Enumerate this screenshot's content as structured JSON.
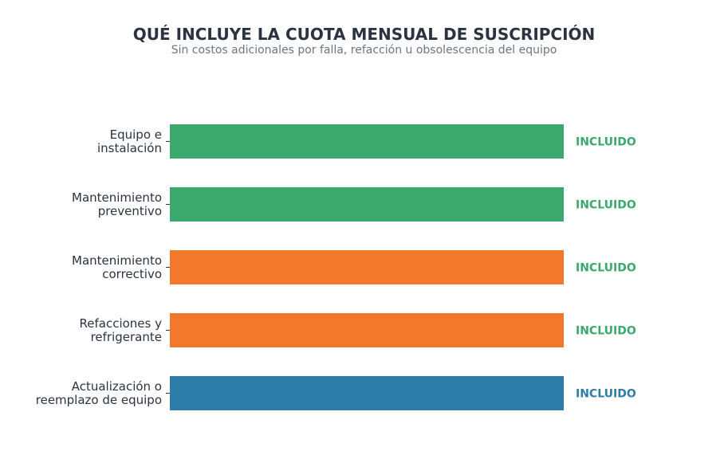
{
  "chart_data": {
    "type": "bar",
    "orientation": "horizontal",
    "title": "QUÉ INCLUYE LA CUOTA MENSUAL DE SUSCRIPCIÓN",
    "subtitle": "Sin costos adicionales por falla, refacción u obsolescencia del equipo",
    "categories": [
      [
        "Equipo e",
        "instalación"
      ],
      [
        "Mantenimiento",
        "preventivo"
      ],
      [
        "Mantenimiento",
        "correctivo"
      ],
      [
        "Refacciones y",
        "refrigerante"
      ],
      [
        "Actualización o",
        "reemplazo de equipo"
      ]
    ],
    "values": [
      1,
      1,
      1,
      1,
      1
    ],
    "xlim": [
      0,
      1
    ],
    "bar_colors": [
      "#3ba86d",
      "#3ba86d",
      "#f2782c",
      "#f2782c",
      "#2e7ca8"
    ],
    "data_labels": [
      "INCLUIDO",
      "INCLUIDO",
      "INCLUIDO",
      "INCLUIDO",
      "INCLUIDO"
    ],
    "data_label_colors": [
      "#3ba86d",
      "#3ba86d",
      "#3ba86d",
      "#3ba86d",
      "#2e7ca8"
    ],
    "grid": false,
    "legend": "none"
  }
}
